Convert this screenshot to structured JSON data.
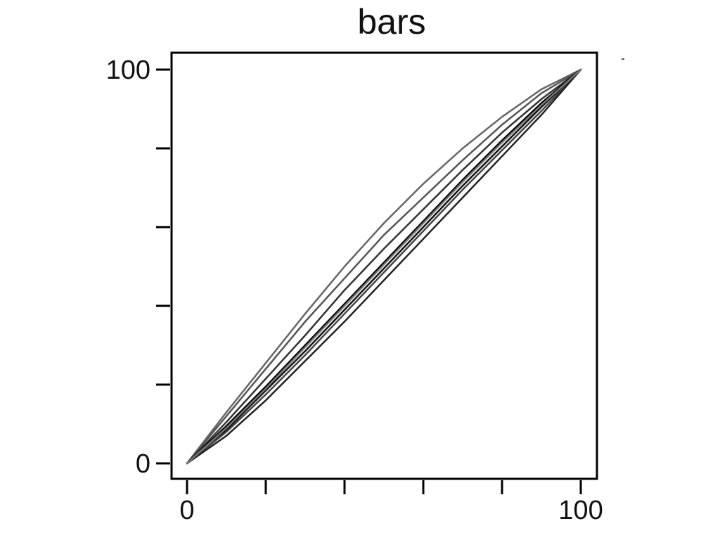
{
  "chart_data": {
    "type": "line",
    "title": "bars",
    "xlabel": "",
    "ylabel": "",
    "xlim": [
      0,
      100
    ],
    "ylim": [
      0,
      100
    ],
    "x_tick_values": [
      0,
      20,
      40,
      60,
      80,
      100
    ],
    "x_tick_labels": [
      "0",
      "",
      "",
      "",
      "",
      "100"
    ],
    "y_tick_values": [
      0,
      20,
      40,
      60,
      80,
      100
    ],
    "y_tick_labels": [
      "0",
      "",
      "",
      "",
      "",
      "100"
    ],
    "grid": false,
    "series": [
      {
        "color": "#666666",
        "x": [
          0,
          10,
          20,
          30,
          40,
          50,
          60,
          70,
          80,
          90,
          100
        ],
        "y": [
          0,
          13,
          25.5,
          38,
          50,
          61,
          71,
          80,
          88,
          95,
          100
        ]
      },
      {
        "color": "#555555",
        "x": [
          0,
          10,
          20,
          30,
          40,
          50,
          60,
          70,
          80,
          90,
          100
        ],
        "y": [
          0,
          12,
          24,
          36,
          47,
          58,
          67.5,
          77,
          86,
          94,
          100
        ]
      },
      {
        "color": "#333333",
        "x": [
          0,
          10,
          20,
          30,
          40,
          50,
          60,
          70,
          80,
          90,
          100
        ],
        "y": [
          0,
          10.5,
          21.5,
          32.5,
          44,
          54.5,
          64.5,
          74.5,
          84,
          92.5,
          100
        ]
      },
      {
        "color": "#000000",
        "x": [
          0,
          10,
          20,
          30,
          40,
          50,
          60,
          70,
          80,
          90,
          100
        ],
        "y": [
          0,
          9.5,
          19.5,
          30,
          40.5,
          51,
          61.5,
          72,
          82,
          91.5,
          100
        ]
      },
      {
        "color": "#111111",
        "x": [
          0,
          10,
          20,
          30,
          40,
          50,
          60,
          70,
          80,
          90,
          100
        ],
        "y": [
          0,
          8.5,
          18.5,
          28.5,
          39,
          49.5,
          60,
          70.5,
          80.5,
          90.5,
          100
        ]
      },
      {
        "color": "#444444",
        "x": [
          0,
          10,
          20,
          30,
          40,
          50,
          60,
          70,
          80,
          90,
          100
        ],
        "y": [
          0,
          8,
          17.5,
          27.5,
          38,
          48.5,
          59,
          69.5,
          79.5,
          89.5,
          100
        ]
      },
      {
        "color": "#222222",
        "x": [
          0,
          10,
          20,
          30,
          40,
          50,
          60,
          70,
          80,
          90,
          100
        ],
        "y": [
          0,
          7,
          16,
          26,
          36,
          46.5,
          57,
          67.5,
          78,
          88.5,
          100
        ]
      },
      {
        "color": "#777777",
        "x": [
          0,
          10,
          20,
          30,
          40,
          50,
          60,
          70,
          80,
          90,
          100
        ],
        "y": [
          0,
          9,
          19,
          29.5,
          40,
          50.5,
          61,
          71.5,
          81.5,
          91,
          100
        ]
      }
    ]
  }
}
